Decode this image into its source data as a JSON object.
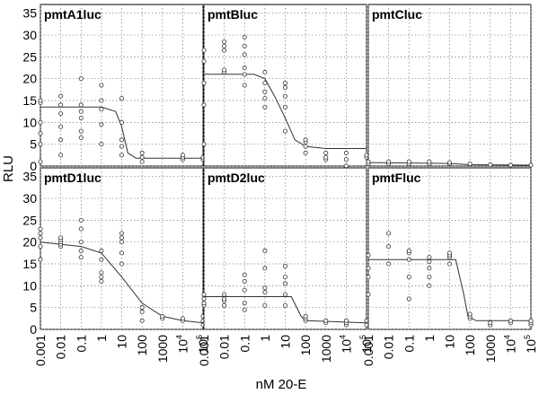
{
  "figure": {
    "ylabel": "RLU",
    "xlabel": "nM 20-E"
  },
  "chart_data": [
    {
      "type": "scatter",
      "title": "pmtA1luc",
      "x": [
        0.001,
        0.01,
        0.1,
        1,
        10,
        100,
        1000,
        10000,
        100000
      ],
      "x_tick_labels": [
        "0.001",
        "0.01",
        "0.1",
        "1",
        "10",
        "100",
        "1000",
        "10",
        "10"
      ],
      "x_tick_exponents": [
        "",
        "",
        "",
        "",
        "",
        "",
        "",
        "4",
        "5"
      ],
      "ylim": [
        0,
        37
      ],
      "y_ticks": [
        0,
        5,
        10,
        15,
        20,
        25,
        30,
        35
      ],
      "scale": "log",
      "grid": true,
      "points": [
        [
          0.001,
          1
        ],
        [
          0.001,
          5
        ],
        [
          0.001,
          7.5
        ],
        [
          0.001,
          10
        ],
        [
          0.001,
          14.5
        ],
        [
          0.001,
          15
        ],
        [
          0.01,
          2.5
        ],
        [
          0.01,
          6
        ],
        [
          0.01,
          9
        ],
        [
          0.01,
          12
        ],
        [
          0.01,
          14
        ],
        [
          0.01,
          16
        ],
        [
          0.1,
          6.5
        ],
        [
          0.1,
          8
        ],
        [
          0.1,
          11
        ],
        [
          0.1,
          12.5
        ],
        [
          0.1,
          14
        ],
        [
          0.1,
          20
        ],
        [
          1,
          5
        ],
        [
          1,
          9.5
        ],
        [
          1,
          13
        ],
        [
          1,
          15
        ],
        [
          1,
          18.5
        ],
        [
          10,
          2.5
        ],
        [
          10,
          4.5
        ],
        [
          10,
          6
        ],
        [
          10,
          10
        ],
        [
          10,
          15.5
        ],
        [
          100,
          1
        ],
        [
          100,
          2
        ],
        [
          100,
          3
        ],
        [
          10000,
          1.5
        ],
        [
          10000,
          2
        ],
        [
          10000,
          2.5
        ],
        [
          100000,
          1.5
        ],
        [
          100000,
          2
        ]
      ],
      "fit": [
        [
          0.001,
          13.5
        ],
        [
          1,
          13.5
        ],
        [
          5,
          12.5
        ],
        [
          10,
          9
        ],
        [
          20,
          3
        ],
        [
          50,
          1.8
        ],
        [
          100000,
          1.8
        ]
      ]
    },
    {
      "type": "scatter",
      "title": "pmtBluc",
      "x": [
        0.001,
        0.01,
        0.1,
        1,
        10,
        100,
        1000,
        10000,
        100000
      ],
      "ylim": [
        0,
        37
      ],
      "scale": "log",
      "grid": true,
      "points": [
        [
          0.001,
          5
        ],
        [
          0.001,
          14
        ],
        [
          0.001,
          19
        ],
        [
          0.001,
          24
        ],
        [
          0.001,
          26.5
        ],
        [
          0.01,
          21.5
        ],
        [
          0.01,
          22
        ],
        [
          0.01,
          26.5
        ],
        [
          0.01,
          27.5
        ],
        [
          0.01,
          28.5
        ],
        [
          0.1,
          18.5
        ],
        [
          0.1,
          21
        ],
        [
          0.1,
          22.5
        ],
        [
          0.1,
          25.5
        ],
        [
          0.1,
          27.5
        ],
        [
          0.1,
          29.5
        ],
        [
          1,
          13.5
        ],
        [
          1,
          15.5
        ],
        [
          1,
          17
        ],
        [
          1,
          19
        ],
        [
          1,
          21.5
        ],
        [
          10,
          8
        ],
        [
          10,
          13.5
        ],
        [
          10,
          16
        ],
        [
          10,
          18
        ],
        [
          10,
          19
        ],
        [
          100,
          3
        ],
        [
          100,
          4.5
        ],
        [
          100,
          5.5
        ],
        [
          100,
          6
        ],
        [
          1000,
          1.5
        ],
        [
          1000,
          2
        ],
        [
          1000,
          3
        ],
        [
          10000,
          0
        ],
        [
          10000,
          1.5
        ],
        [
          10000,
          3
        ],
        [
          100000,
          2
        ],
        [
          100000,
          2.5
        ]
      ],
      "fit": [
        [
          0.001,
          21
        ],
        [
          0.3,
          21
        ],
        [
          1,
          20
        ],
        [
          3,
          16
        ],
        [
          10,
          11
        ],
        [
          30,
          6
        ],
        [
          100,
          4.5
        ],
        [
          1000,
          4
        ],
        [
          100000,
          4
        ]
      ]
    },
    {
      "type": "scatter",
      "title": "pmtCluc",
      "x": [
        0.001,
        0.01,
        0.1,
        1,
        10,
        100,
        1000,
        10000,
        100000
      ],
      "ylim": [
        0,
        37
      ],
      "scale": "log",
      "grid": true,
      "points": [
        [
          0.001,
          0.5
        ],
        [
          0.001,
          1
        ],
        [
          0.01,
          0.5
        ],
        [
          0.01,
          1
        ],
        [
          0.1,
          0.5
        ],
        [
          0.1,
          1
        ],
        [
          1,
          0.5
        ],
        [
          1,
          1
        ],
        [
          10,
          0.5
        ],
        [
          10,
          0.8
        ],
        [
          100,
          0.5
        ],
        [
          1000,
          0.3
        ],
        [
          10000,
          0.2
        ],
        [
          100000,
          0.2
        ]
      ],
      "fit": [
        [
          0.001,
          0.8
        ],
        [
          10,
          0.6
        ],
        [
          100,
          0.3
        ],
        [
          100000,
          0.2
        ]
      ]
    },
    {
      "type": "scatter",
      "title": "pmtD1luc",
      "x": [
        0.001,
        0.01,
        0.1,
        1,
        10,
        100,
        1000,
        10000,
        100000
      ],
      "ylim": [
        0,
        37
      ],
      "y_ticks": [
        0,
        5,
        10,
        15,
        20,
        25,
        30,
        35
      ],
      "scale": "log",
      "grid": true,
      "points": [
        [
          0.001,
          16
        ],
        [
          0.001,
          19
        ],
        [
          0.001,
          21
        ],
        [
          0.001,
          22
        ],
        [
          0.001,
          23
        ],
        [
          0.01,
          19
        ],
        [
          0.01,
          19.5
        ],
        [
          0.01,
          20
        ],
        [
          0.01,
          20.5
        ],
        [
          0.01,
          21
        ],
        [
          0.1,
          16.5
        ],
        [
          0.1,
          18
        ],
        [
          0.1,
          20
        ],
        [
          0.1,
          23
        ],
        [
          0.1,
          25
        ],
        [
          1,
          11
        ],
        [
          1,
          12
        ],
        [
          1,
          13
        ],
        [
          1,
          16
        ],
        [
          1,
          18
        ],
        [
          10,
          15
        ],
        [
          10,
          17.5
        ],
        [
          10,
          20
        ],
        [
          10,
          21
        ],
        [
          10,
          22
        ],
        [
          100,
          2
        ],
        [
          100,
          4
        ],
        [
          100,
          5
        ],
        [
          1000,
          2.5
        ],
        [
          1000,
          3
        ],
        [
          10000,
          2
        ],
        [
          10000,
          2.5
        ],
        [
          100000,
          1
        ],
        [
          100000,
          2
        ],
        [
          100000,
          3
        ]
      ],
      "fit": [
        [
          0.001,
          20
        ],
        [
          0.1,
          19
        ],
        [
          1,
          17.5
        ],
        [
          10,
          12
        ],
        [
          100,
          6
        ],
        [
          1000,
          3
        ],
        [
          10000,
          2
        ],
        [
          100000,
          1.5
        ]
      ]
    },
    {
      "type": "scatter",
      "title": "pmtD2luc",
      "x": [
        0.001,
        0.01,
        0.1,
        1,
        10,
        100,
        1000,
        10000,
        100000
      ],
      "ylim": [
        0,
        37
      ],
      "scale": "log",
      "grid": true,
      "points": [
        [
          0.001,
          5.5
        ],
        [
          0.001,
          6
        ],
        [
          0.001,
          7
        ],
        [
          0.001,
          8
        ],
        [
          0.01,
          5.5
        ],
        [
          0.01,
          6.5
        ],
        [
          0.01,
          7
        ],
        [
          0.01,
          8
        ],
        [
          0.1,
          4.5
        ],
        [
          0.1,
          6
        ],
        [
          0.1,
          9
        ],
        [
          0.1,
          11
        ],
        [
          0.1,
          12.5
        ],
        [
          1,
          5.5
        ],
        [
          1,
          8.5
        ],
        [
          1,
          9.5
        ],
        [
          1,
          14
        ],
        [
          1,
          18
        ],
        [
          10,
          5.5
        ],
        [
          10,
          8
        ],
        [
          10,
          10.5
        ],
        [
          10,
          12
        ],
        [
          10,
          14.5
        ],
        [
          100,
          2
        ],
        [
          100,
          2.5
        ],
        [
          100,
          3
        ],
        [
          1000,
          1.5
        ],
        [
          1000,
          2
        ],
        [
          10000,
          1
        ],
        [
          10000,
          1.5
        ],
        [
          10000,
          2
        ],
        [
          100000,
          1
        ],
        [
          100000,
          2
        ]
      ],
      "fit": [
        [
          0.001,
          7.5
        ],
        [
          20,
          7.5
        ],
        [
          60,
          3
        ],
        [
          100,
          2
        ],
        [
          100000,
          1.5
        ]
      ]
    },
    {
      "type": "scatter",
      "title": "pmtFluc",
      "x": [
        0.001,
        0.01,
        0.1,
        1,
        10,
        100,
        1000,
        10000,
        100000
      ],
      "ylim": [
        0,
        37
      ],
      "scale": "log",
      "grid": true,
      "points": [
        [
          0.001,
          8
        ],
        [
          0.001,
          12
        ],
        [
          0.001,
          14
        ],
        [
          0.001,
          17
        ],
        [
          0.01,
          15
        ],
        [
          0.01,
          19
        ],
        [
          0.01,
          22
        ],
        [
          0.1,
          7
        ],
        [
          0.1,
          12
        ],
        [
          0.1,
          16
        ],
        [
          0.1,
          17.5
        ],
        [
          0.1,
          18
        ],
        [
          1,
          10
        ],
        [
          1,
          12
        ],
        [
          1,
          14
        ],
        [
          1,
          15.5
        ],
        [
          1,
          16.5
        ],
        [
          10,
          15
        ],
        [
          10,
          16.5
        ],
        [
          10,
          17
        ],
        [
          10,
          17.5
        ],
        [
          100,
          2.5
        ],
        [
          100,
          3
        ],
        [
          100,
          3.5
        ],
        [
          1000,
          1
        ],
        [
          1000,
          1.5
        ],
        [
          10000,
          1.5
        ],
        [
          10000,
          2
        ],
        [
          100000,
          1
        ],
        [
          100000,
          1.5
        ],
        [
          100000,
          2
        ]
      ],
      "fit": [
        [
          0.001,
          16
        ],
        [
          20,
          16
        ],
        [
          50,
          8
        ],
        [
          80,
          3
        ],
        [
          200,
          2
        ],
        [
          100000,
          2
        ]
      ]
    }
  ]
}
